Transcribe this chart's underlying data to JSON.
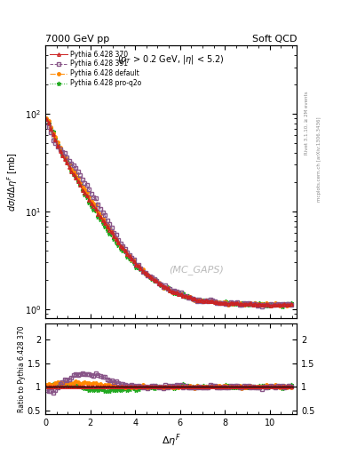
{
  "title_left": "7000 GeV pp",
  "title_right": "Soft QCD",
  "annotation_text": "($p_T$ > 0.2 GeV, $|\\eta|$ < 5.2)",
  "watermark": "(MC_GAPS)",
  "ylabel_main": "$d\\sigma/d\\Delta\\eta^F$ [mb]",
  "ylabel_ratio": "Ratio to Pythia 6.428 370",
  "xlabel": "$\\Delta\\eta^F$",
  "right_label1": "Rivet 3.1.10, ≥ 2M events",
  "right_label2": "mcplots.cern.ch [arXiv:1306.3436]",
  "xlim": [
    0,
    11.2
  ],
  "ylim_main_log": [
    0.8,
    500
  ],
  "ylim_ratio": [
    0.42,
    2.35
  ],
  "series": [
    {
      "label": "Pythia 6.428 370",
      "color": "#cc2222",
      "marker": "^",
      "linestyle": "-",
      "markersize": 2.5,
      "fillstyle": "none"
    },
    {
      "label": "Pythia 6.428 391",
      "color": "#885588",
      "marker": "s",
      "linestyle": "--",
      "markersize": 2.5,
      "fillstyle": "none"
    },
    {
      "label": "Pythia 6.428 default",
      "color": "#ff8800",
      "marker": "o",
      "linestyle": "-.",
      "markersize": 2.5,
      "fillstyle": "full"
    },
    {
      "label": "Pythia 6.428 pro-q2o",
      "color": "#22aa22",
      "marker": "*",
      "linestyle": ":",
      "markersize": 3.5,
      "fillstyle": "full"
    }
  ]
}
